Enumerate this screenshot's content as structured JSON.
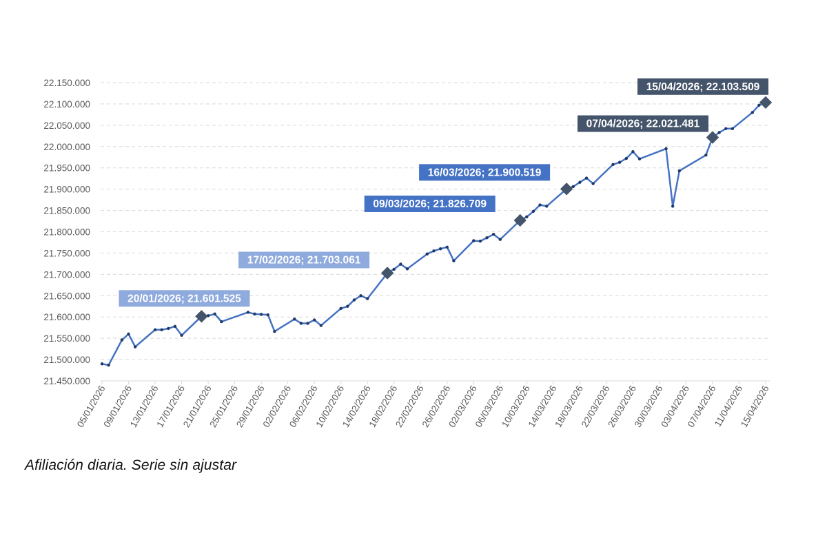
{
  "caption": "Afiliación diaria. Serie sin ajustar",
  "chart_data": {
    "type": "line",
    "ylim": [
      21450000,
      22150000
    ],
    "y_ticks": [
      21450000,
      21500000,
      21550000,
      21600000,
      21650000,
      21700000,
      21750000,
      21800000,
      21850000,
      21900000,
      21950000,
      22000000,
      22050000,
      22100000,
      22150000
    ],
    "y_tick_labels": [
      "21.450.000",
      "21.500.000",
      "21.550.000",
      "21.600.000",
      "21.650.000",
      "21.700.000",
      "21.750.000",
      "21.800.000",
      "21.850.000",
      "21.900.000",
      "21.950.000",
      "22.000.000",
      "22.050.000",
      "22.100.000",
      "22.150.000"
    ],
    "x_tick_labels": [
      "05/01/2026",
      "09/01/2026",
      "13/01/2026",
      "17/01/2026",
      "21/01/2026",
      "25/01/2026",
      "29/01/2026",
      "02/02/2026",
      "06/02/2026",
      "10/02/2026",
      "14/02/2026",
      "18/02/2026",
      "22/02/2026",
      "26/02/2026",
      "02/03/2026",
      "06/03/2026",
      "10/03/2026",
      "14/03/2026",
      "18/03/2026",
      "22/03/2026",
      "26/03/2026",
      "30/03/2026",
      "03/04/2026",
      "07/04/2026",
      "11/04/2026",
      "15/04/2026"
    ],
    "grid": true,
    "colors": {
      "line": "#4472c4",
      "marker": "#1f3864",
      "highlight": "#44546a",
      "grid": "#d9d9d9",
      "axis": "#d9d9d9"
    },
    "series": [
      {
        "points": [
          [
            "2026-01-05",
            21490000
          ],
          [
            "2026-01-06",
            21487000
          ],
          [
            "2026-01-08",
            21546000
          ],
          [
            "2026-01-09",
            21560000
          ],
          [
            "2026-01-10",
            21530000
          ],
          [
            "2026-01-13",
            21570000
          ],
          [
            "2026-01-14",
            21570000
          ],
          [
            "2026-01-15",
            21573000
          ],
          [
            "2026-01-16",
            21578000
          ],
          [
            "2026-01-17",
            21557000
          ],
          [
            "2026-01-20",
            21601525
          ],
          [
            "2026-01-21",
            21603000
          ],
          [
            "2026-01-22",
            21607000
          ],
          [
            "2026-01-23",
            21589000
          ],
          [
            "2026-01-27",
            21611000
          ],
          [
            "2026-01-28",
            21607000
          ],
          [
            "2026-01-29",
            21606000
          ],
          [
            "2026-01-30",
            21605000
          ],
          [
            "2026-01-31",
            21566000
          ],
          [
            "2026-02-03",
            21595000
          ],
          [
            "2026-02-04",
            21585000
          ],
          [
            "2026-02-05",
            21585000
          ],
          [
            "2026-02-06",
            21593000
          ],
          [
            "2026-02-07",
            21580000
          ],
          [
            "2026-02-10",
            21620000
          ],
          [
            "2026-02-11",
            21625000
          ],
          [
            "2026-02-12",
            21640000
          ],
          [
            "2026-02-13",
            21650000
          ],
          [
            "2026-02-14",
            21643000
          ],
          [
            "2026-02-17",
            21703061
          ],
          [
            "2026-02-18",
            21712000
          ],
          [
            "2026-02-19",
            21724000
          ],
          [
            "2026-02-20",
            21713000
          ],
          [
            "2026-02-23",
            21748000
          ],
          [
            "2026-02-24",
            21755000
          ],
          [
            "2026-02-25",
            21760000
          ],
          [
            "2026-02-26",
            21764000
          ],
          [
            "2026-02-27",
            21732000
          ],
          [
            "2026-03-02",
            21779000
          ],
          [
            "2026-03-03",
            21778000
          ],
          [
            "2026-03-04",
            21786000
          ],
          [
            "2026-03-05",
            21794000
          ],
          [
            "2026-03-06",
            21782000
          ],
          [
            "2026-03-09",
            21826709
          ],
          [
            "2026-03-10",
            21835000
          ],
          [
            "2026-03-11",
            21848000
          ],
          [
            "2026-03-12",
            21863000
          ],
          [
            "2026-03-13",
            21860000
          ],
          [
            "2026-03-16",
            21900519
          ],
          [
            "2026-03-17",
            21906000
          ],
          [
            "2026-03-18",
            21916000
          ],
          [
            "2026-03-19",
            21926000
          ],
          [
            "2026-03-20",
            21913000
          ],
          [
            "2026-03-23",
            21958000
          ],
          [
            "2026-03-24",
            21963000
          ],
          [
            "2026-03-25",
            21972000
          ],
          [
            "2026-03-26",
            21988000
          ],
          [
            "2026-03-27",
            21971000
          ],
          [
            "2026-03-31",
            21995000
          ],
          [
            "2026-04-01",
            21860000
          ],
          [
            "2026-04-02",
            21943000
          ],
          [
            "2026-04-06",
            21980000
          ],
          [
            "2026-04-07",
            22021481
          ],
          [
            "2026-04-08",
            22033000
          ],
          [
            "2026-04-09",
            22042000
          ],
          [
            "2026-04-10",
            22042000
          ],
          [
            "2026-04-13",
            22080000
          ],
          [
            "2026-04-14",
            22097000
          ],
          [
            "2026-04-15",
            22103509
          ]
        ]
      }
    ],
    "annotations": [
      {
        "date": "2026-01-20",
        "value": 21601525,
        "label": "20/01/2026; 21.601.525",
        "bg": "#8faadc"
      },
      {
        "date": "2026-02-17",
        "value": 21703061,
        "label": "17/02/2026; 21.703.061",
        "bg": "#8faadc"
      },
      {
        "date": "2026-03-09",
        "value": 21826709,
        "label": "09/03/2026; 21.826.709",
        "bg": "#4472c4"
      },
      {
        "date": "2026-03-16",
        "value": 21900519,
        "label": "16/03/2026; 21.900.519",
        "bg": "#4472c4"
      },
      {
        "date": "2026-04-07",
        "value": 22021481,
        "label": "07/04/2026; 22.021.481",
        "bg": "#44546a"
      },
      {
        "date": "2026-04-15",
        "value": 22103509,
        "label": "15/04/2026; 22.103.509",
        "bg": "#44546a"
      }
    ]
  }
}
